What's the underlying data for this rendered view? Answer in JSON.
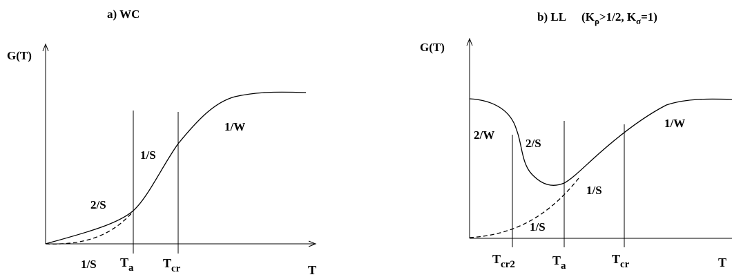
{
  "panel_a": {
    "title": "a) WC",
    "y_axis_label": "G(T)",
    "x_axis_label": "T",
    "tick_ta": {
      "main": "T",
      "sub": "a"
    },
    "tick_tcr": {
      "main": "T",
      "sub": "cr"
    },
    "region_labels": {
      "one_over_w": "1/W",
      "one_over_s_upper": "1/S",
      "two_over_s": "2/S",
      "one_over_s_lower": "1/S"
    }
  },
  "panel_b": {
    "title_prefix": "b) LL",
    "title_cond_open": "(K",
    "title_cond_sub_rho": "ρ",
    "title_cond_mid": ">1/2, K",
    "title_cond_sub_sigma": "σ",
    "title_cond_close": "=1)",
    "y_axis_label": "G(T)",
    "x_axis_label": "T",
    "tick_tcr2": {
      "main": "T",
      "sub": "cr2"
    },
    "tick_ta": {
      "main": "T",
      "sub": "a"
    },
    "tick_tcr": {
      "main": "T",
      "sub": "cr"
    },
    "region_labels": {
      "two_over_w": "2/W",
      "two_over_s": "2/S",
      "one_over_w": "1/W",
      "one_over_s_right": "1/S",
      "one_over_s_lower": "1/S"
    }
  },
  "colors": {
    "ink": "#000000",
    "background": "#ffffff"
  }
}
